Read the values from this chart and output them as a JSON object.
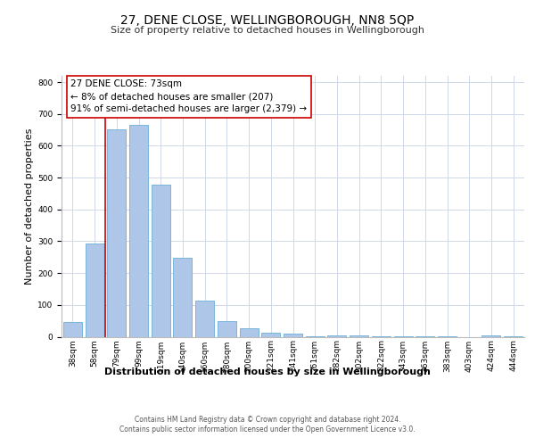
{
  "title": "27, DENE CLOSE, WELLINGBOROUGH, NN8 5QP",
  "subtitle": "Size of property relative to detached houses in Wellingborough",
  "xlabel": "Distribution of detached houses by size in Wellingborough",
  "ylabel": "Number of detached properties",
  "bar_labels": [
    "38sqm",
    "58sqm",
    "79sqm",
    "99sqm",
    "119sqm",
    "140sqm",
    "160sqm",
    "180sqm",
    "200sqm",
    "221sqm",
    "241sqm",
    "261sqm",
    "282sqm",
    "302sqm",
    "322sqm",
    "343sqm",
    "363sqm",
    "383sqm",
    "403sqm",
    "424sqm",
    "444sqm"
  ],
  "bar_heights": [
    47,
    293,
    651,
    665,
    477,
    248,
    113,
    48,
    27,
    14,
    10,
    2,
    5,
    5,
    2,
    1,
    1,
    1,
    0,
    5,
    1
  ],
  "bar_color": "#aec6e8",
  "bar_edge_color": "#6baed6",
  "vline_color": "#cc0000",
  "vline_x_index": 1.5,
  "annotation_box_text": "27 DENE CLOSE: 73sqm\n← 8% of detached houses are smaller (207)\n91% of semi-detached houses are larger (2,379) →",
  "box_edge_color": "#cc0000",
  "ylim": [
    0,
    820
  ],
  "yticks": [
    0,
    100,
    200,
    300,
    400,
    500,
    600,
    700,
    800
  ],
  "footer_line1": "Contains HM Land Registry data © Crown copyright and database right 2024.",
  "footer_line2": "Contains public sector information licensed under the Open Government Licence v3.0.",
  "background_color": "#ffffff",
  "grid_color": "#d0d8e8",
  "title_fontsize": 10,
  "subtitle_fontsize": 8,
  "ylabel_fontsize": 8,
  "xlabel_fontsize": 8,
  "tick_fontsize": 6.5,
  "annotation_fontsize": 7.5,
  "footer_fontsize": 5.5
}
